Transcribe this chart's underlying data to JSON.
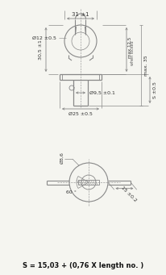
{
  "bg_color": "#f5f5f0",
  "line_color": "#888888",
  "dim_color": "#888888",
  "text_color": "#555555",
  "title_formula": "S = 15,03 + (0,76 X length no. )",
  "dims": {
    "top_width": "31 ±1",
    "left_height": "30,5 ±1",
    "knob_dia": "Ø12 ±0.5",
    "shaft_dia": "Ø9,5 ±0.1",
    "flange_dia": "Ø25 ±0.5",
    "max_locked": "max 12,5",
    "when_locked": "when locked",
    "max_35": "max. 35",
    "s_dim": "S ±0.5",
    "hole_dia": "Ø3,6",
    "angle": "60 °",
    "length": "15 ±0.2"
  },
  "figsize": [
    2.06,
    3.41
  ],
  "dpi": 100
}
